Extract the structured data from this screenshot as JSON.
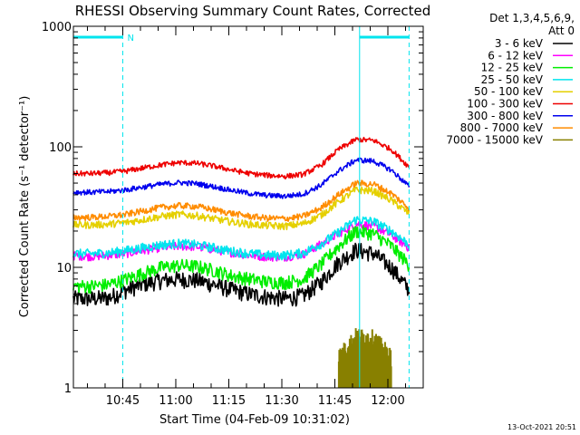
{
  "chart_data": {
    "type": "line",
    "title": "RHESSI Observing Summary Count Rates, Corrected",
    "xlabel": "Start Time (04-Feb-09 10:31:02)",
    "ylabel": "Corrected Count Rate (s⁻¹ detector⁻¹)",
    "yscale": "log",
    "ylim": [
      1,
      1000
    ],
    "xlim": [
      "10:31:02",
      "12:10:00"
    ],
    "y_ticks": [
      "1",
      "10",
      "100",
      "1000"
    ],
    "x_ticks": [
      "10:45",
      "11:00",
      "11:15",
      "11:30",
      "11:45",
      "12:00"
    ],
    "grid": false,
    "legend_position": "right",
    "legend_header": [
      "Det 1,3,4,5,6,9,",
      "Att 0"
    ],
    "timestamp": "13-Oct-2021 20:51",
    "annotations": {
      "flag_label": "N",
      "flag_segments": [
        [
          "10:31:02",
          "10:45:00"
        ],
        [
          "11:52:00",
          "12:06:00"
        ]
      ],
      "vertical_markers": [
        "10:45:00",
        "11:52:00",
        "12:06:00"
      ],
      "vertical_marker_styles": [
        "dashed",
        "solid",
        "dashed"
      ],
      "flag_color": "#00e5ee"
    },
    "x": [
      "10:31",
      "10:36",
      "10:41",
      "10:46",
      "10:51",
      "10:56",
      "11:01",
      "11:06",
      "11:11",
      "11:16",
      "11:21",
      "11:26",
      "11:31",
      "11:36",
      "11:41",
      "11:46",
      "11:51",
      "11:56",
      "12:01",
      "12:06"
    ],
    "series": [
      {
        "name": "3 - 6 keV",
        "color": "#000000",
        "values": [
          5.5,
          5.5,
          5.6,
          6.5,
          7.3,
          7.8,
          8.0,
          7.8,
          7.2,
          6.5,
          6.0,
          5.7,
          5.5,
          5.8,
          7.5,
          11.0,
          14.0,
          13.0,
          10.0,
          6.5
        ]
      },
      {
        "name": "6 - 12 keV",
        "color": "#ff00ff",
        "values": [
          12.5,
          12.3,
          12.6,
          13.0,
          13.8,
          14.6,
          15.0,
          14.8,
          14.0,
          13.2,
          12.6,
          12.2,
          12.2,
          12.8,
          15.5,
          19.0,
          23.0,
          22.0,
          18.5,
          14.5
        ]
      },
      {
        "name": "12 - 25 keV",
        "color": "#00ee00",
        "values": [
          7.0,
          7.0,
          7.2,
          8.0,
          9.0,
          10.0,
          10.4,
          10.2,
          9.4,
          8.5,
          8.0,
          7.6,
          7.5,
          8.0,
          10.5,
          15.0,
          20.0,
          19.0,
          15.0,
          10.5
        ]
      },
      {
        "name": "25 - 50 keV",
        "color": "#00e5ee",
        "values": [
          13.0,
          13.0,
          13.2,
          13.8,
          14.6,
          15.4,
          15.8,
          15.4,
          14.5,
          13.6,
          13.0,
          12.6,
          12.6,
          13.2,
          15.6,
          19.5,
          25.0,
          24.0,
          20.0,
          15.5
        ]
      },
      {
        "name": "50 - 100 keV",
        "color": "#e5d000",
        "values": [
          22.5,
          22.5,
          22.8,
          23.6,
          25.0,
          26.5,
          27.5,
          26.8,
          25.2,
          23.8,
          22.8,
          22.2,
          22.0,
          23.0,
          27.0,
          35.0,
          44.0,
          43.0,
          36.0,
          28.0
        ]
      },
      {
        "name": "100 - 300 keV",
        "color": "#ee0000",
        "values": [
          60.0,
          60.0,
          61.0,
          63.0,
          67.0,
          71.0,
          74.0,
          73.0,
          69.0,
          64.0,
          60.0,
          58.0,
          57.0,
          59.0,
          70.0,
          95.0,
          115.0,
          113.0,
          95.0,
          68.0
        ]
      },
      {
        "name": "300 - 800 keV",
        "color": "#0000ee",
        "values": [
          42.0,
          42.0,
          42.5,
          44.0,
          46.5,
          49.0,
          50.5,
          49.5,
          46.5,
          43.5,
          41.0,
          39.5,
          39.0,
          40.5,
          48.0,
          63.0,
          78.0,
          76.0,
          64.0,
          47.0
        ]
      },
      {
        "name": "800 - 7000 keV",
        "color": "#ff8c00",
        "values": [
          26.0,
          26.0,
          26.5,
          27.5,
          29.5,
          31.5,
          32.5,
          32.0,
          30.0,
          28.0,
          26.5,
          25.6,
          25.4,
          26.5,
          31.0,
          40.0,
          50.0,
          49.0,
          41.0,
          31.0
        ]
      },
      {
        "name": "7000 - 15000 keV",
        "color": "#888000",
        "values": [
          null,
          null,
          null,
          null,
          null,
          null,
          null,
          null,
          null,
          null,
          null,
          null,
          null,
          null,
          null,
          1.8,
          2.7,
          2.6,
          1.8,
          null
        ]
      }
    ]
  }
}
